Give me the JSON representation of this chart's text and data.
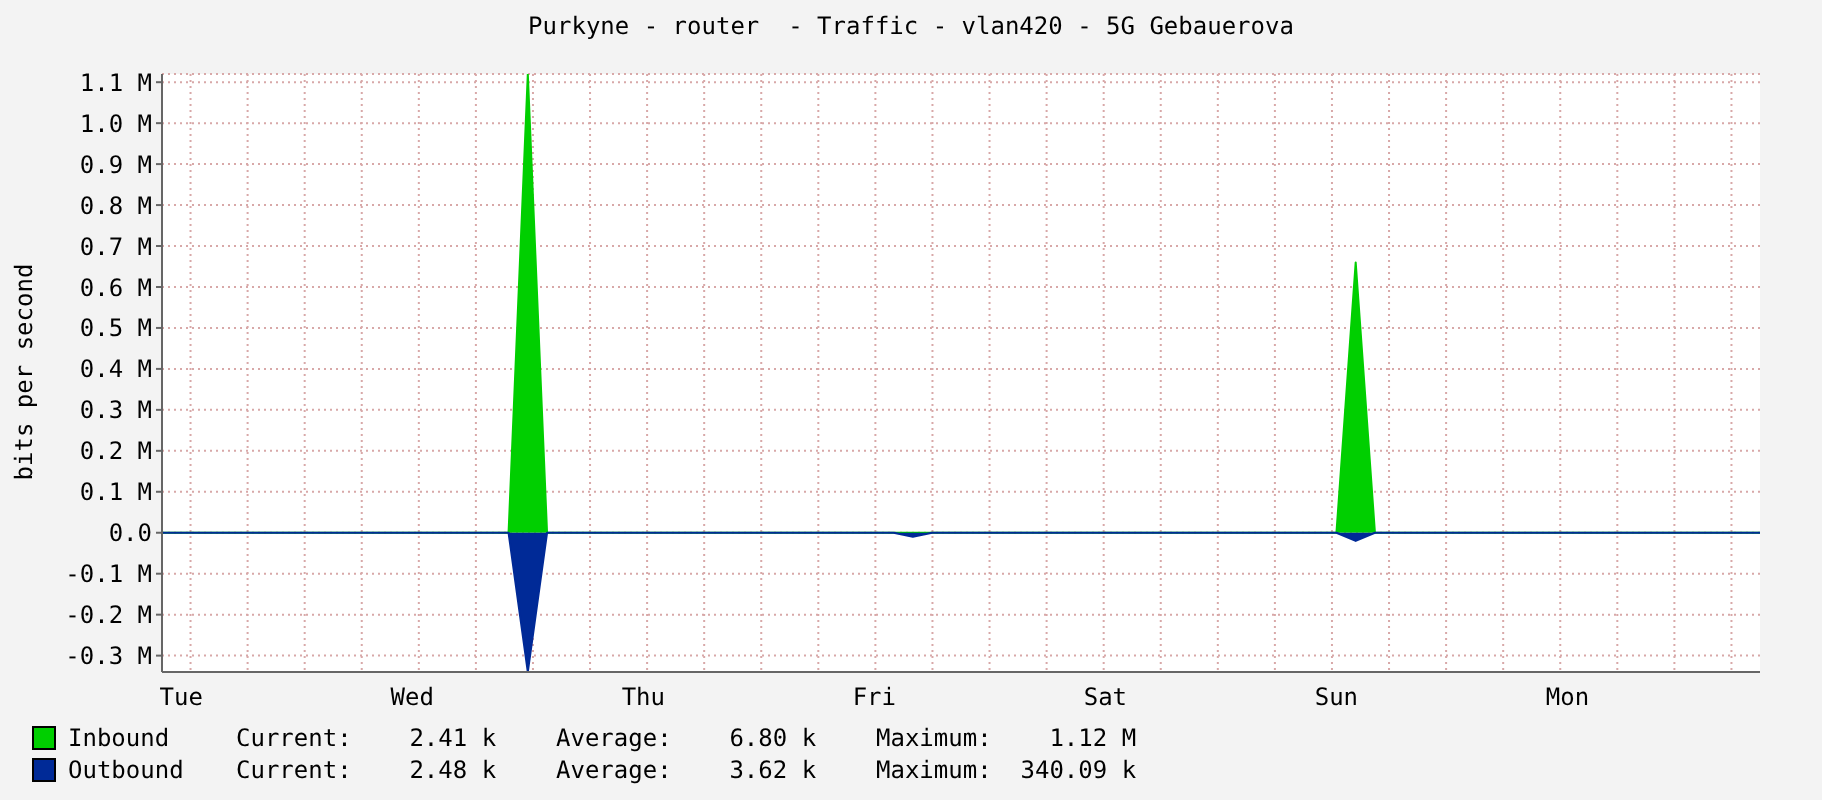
{
  "chart_data": {
    "type": "area",
    "title": "Purkyne - router  - Traffic - vlan420 - 5G Gebauerova",
    "ylabel": "bits per second",
    "categories": [
      null,
      "Tue",
      null,
      null,
      null,
      null,
      null,
      null,
      null,
      null,
      null,
      null,
      null,
      "Wed",
      null,
      null,
      null,
      null,
      null,
      null,
      null,
      null,
      null,
      null,
      null,
      "Thu",
      null,
      null,
      null,
      null,
      null,
      null,
      null,
      null,
      null,
      null,
      null,
      "Fri",
      null,
      null,
      null,
      null,
      null,
      null,
      null,
      null,
      null,
      null,
      null,
      "Sat",
      null,
      null,
      null,
      null,
      null,
      null,
      null,
      null,
      null,
      null,
      null,
      "Sun",
      null,
      null,
      null,
      null,
      null,
      null,
      null,
      null,
      null,
      null,
      null,
      "Mon",
      null,
      null,
      null,
      null,
      null,
      null,
      null,
      null,
      null,
      null
    ],
    "series": [
      {
        "name": "Inbound",
        "color": "#00cf00",
        "values": [
          0,
          0,
          0,
          0,
          0,
          0,
          0,
          0,
          0,
          0,
          0,
          0,
          0,
          0,
          0,
          0,
          0,
          0,
          0,
          1.12,
          0,
          0,
          0,
          0,
          0,
          0,
          0,
          0,
          0,
          0,
          0,
          0,
          0,
          0,
          0,
          0,
          0,
          0,
          0,
          0,
          0,
          0,
          0,
          0,
          0,
          0,
          0,
          0,
          0,
          0,
          0,
          0,
          0,
          0,
          0,
          0,
          0,
          0,
          0,
          0,
          0,
          0,
          0.66,
          0,
          0,
          0,
          0,
          0,
          0,
          0,
          0,
          0,
          0,
          0,
          0,
          0,
          0,
          0,
          0,
          0,
          0,
          0,
          0,
          0
        ]
      },
      {
        "name": "Outbound",
        "color": "#002a97",
        "values": [
          0,
          0,
          0,
          0,
          0,
          0,
          0,
          0,
          0,
          0,
          0,
          0,
          0,
          0,
          0,
          0,
          0,
          0,
          0,
          -0.34,
          0,
          0,
          0,
          0,
          0,
          0,
          0,
          0,
          0,
          0,
          0,
          0,
          0,
          0,
          0,
          0,
          0,
          0,
          0,
          -0.01,
          0,
          0,
          0,
          0,
          0,
          0,
          0,
          0,
          0,
          0,
          0,
          0,
          0,
          0,
          0,
          0,
          0,
          0,
          0,
          0,
          0,
          0,
          -0.02,
          0,
          0,
          0,
          0,
          0,
          0,
          0,
          0,
          0,
          0,
          0,
          0,
          0,
          0,
          0,
          0,
          0,
          0,
          0,
          0,
          0
        ]
      }
    ],
    "ylim": [
      -0.34,
      1.12
    ],
    "yticks": [
      {
        "value": -0.3,
        "label": "-0.3 M"
      },
      {
        "value": -0.2,
        "label": "-0.2 M"
      },
      {
        "value": -0.1,
        "label": "-0.1 M"
      },
      {
        "value": 0,
        "label": "0.0"
      },
      {
        "value": 0.1,
        "label": "0.1 M"
      },
      {
        "value": 0.2,
        "label": "0.2 M"
      },
      {
        "value": 0.3,
        "label": "0.3 M"
      },
      {
        "value": 0.4,
        "label": "0.4 M"
      },
      {
        "value": 0.5,
        "label": "0.5 M"
      },
      {
        "value": 0.6,
        "label": "0.6 M"
      },
      {
        "value": 0.7,
        "label": "0.7 M"
      },
      {
        "value": 0.8,
        "label": "0.8 M"
      },
      {
        "value": 0.9,
        "label": "0.9 M"
      },
      {
        "value": 1.0,
        "label": "1.0 M"
      },
      {
        "value": 1.1,
        "label": "1.1 M"
      }
    ],
    "grid": true,
    "legend": "bottom",
    "annotations": [
      "Current:    2.41 k",
      "Average:    6.80 k",
      "Maximum:    1.12 M",
      "Current:    2.48 k",
      "Average:    3.62 k",
      "Maximum:  340.09 k"
    ]
  }
}
